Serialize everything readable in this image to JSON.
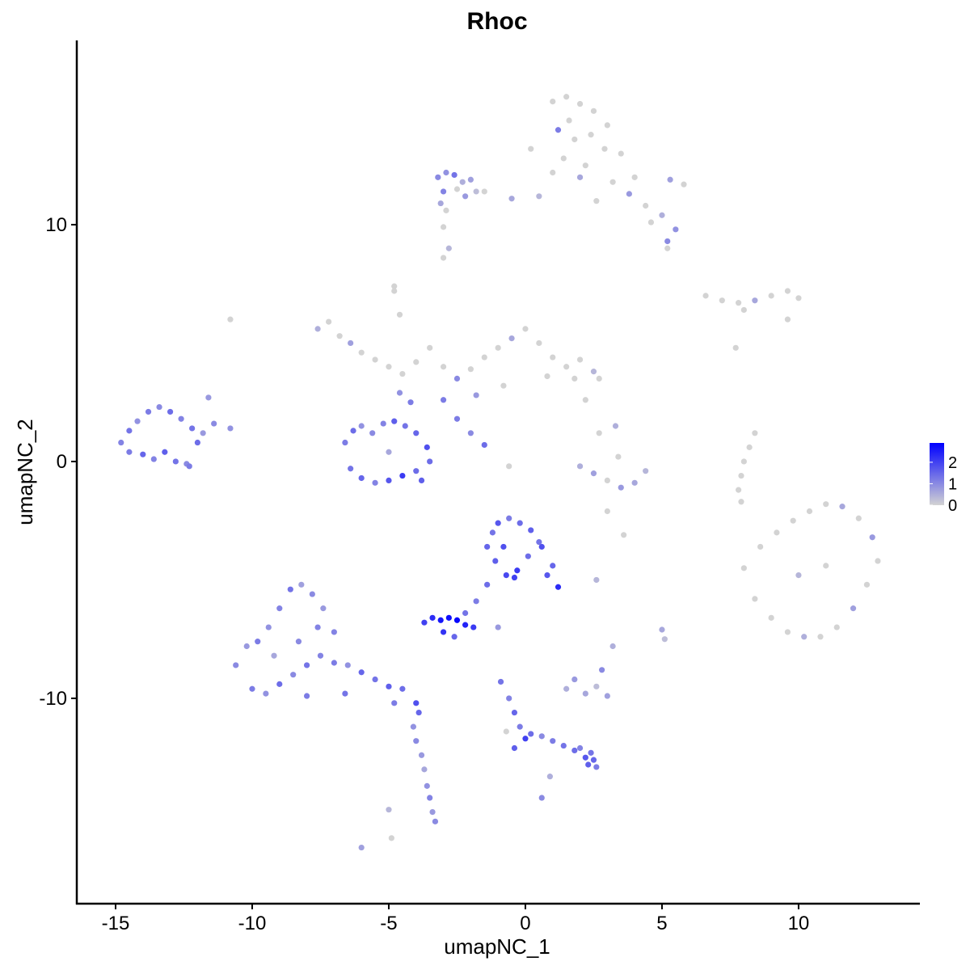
{
  "chart_data": {
    "type": "scatter",
    "title": "Rhoc",
    "x_label": "umapNC_1",
    "y_label": "umapNC_2",
    "xlim": [
      -16.42,
      14.44
    ],
    "ylim": [
      -18.67,
      17.78
    ],
    "xticks": [
      -15,
      -10,
      -5,
      0,
      5,
      10
    ],
    "yticks": [
      -10,
      0,
      10
    ],
    "colors": [
      "#d3d3d3",
      "#0000ff"
    ],
    "clim": [
      0,
      2.9
    ],
    "cticks": [
      0,
      1,
      2
    ],
    "x": [
      1.0,
      1.5,
      2.0,
      2.5,
      3.0,
      1.2,
      1.8,
      2.4,
      2.9,
      1.4,
      1.0,
      2.0,
      3.2,
      3.8,
      4.4,
      5.0,
      5.5,
      5.2,
      4.6,
      2.6,
      5.3,
      5.8,
      4.0,
      3.5,
      0.5,
      -0.5,
      -1.5,
      0.2,
      2.2,
      1.6,
      -3.2,
      -2.9,
      -2.6,
      -2.3,
      -2.0,
      -3.0,
      -2.5,
      -2.2,
      -3.1,
      -1.8,
      -7.6,
      -7.2,
      -6.8,
      -6.4,
      -6.0,
      -5.5,
      -5.0,
      -4.5,
      -4.0,
      -3.5,
      -3.0,
      -2.5,
      -2.0,
      -1.5,
      -1.0,
      -0.5,
      0.0,
      0.5,
      1.0,
      1.5,
      2.0,
      2.5,
      2.7,
      1.8,
      0.8,
      -0.8,
      -1.8,
      -4.6,
      -4.8,
      -3.0,
      -6.6,
      -6.3,
      -6.0,
      -5.6,
      -5.2,
      -4.8,
      -4.4,
      -4.0,
      -3.6,
      -3.5,
      -6.4,
      -6.0,
      -5.5,
      -5.0,
      -4.5,
      -4.0,
      -3.8,
      -5.0,
      -4.2,
      -4.6,
      -2.5,
      -2.0,
      -1.5,
      -10.8,
      -0.6,
      -4.8,
      -3.0,
      -2.8,
      3.0,
      2.2,
      -14.8,
      -14.5,
      -14.2,
      -13.8,
      -13.4,
      -13.0,
      -12.6,
      -12.2,
      -11.8,
      -11.4,
      -14.5,
      -14.0,
      -13.6,
      -13.2,
      -12.8,
      -12.4,
      -12.0,
      -11.6,
      -12.3,
      -10.8,
      8.0,
      8.6,
      9.2,
      9.8,
      10.4,
      11.0,
      11.6,
      12.2,
      12.7,
      12.9,
      8.4,
      9.0,
      9.6,
      10.2,
      10.8,
      11.4,
      12.0,
      12.5,
      10.0,
      11.0,
      -10.6,
      -10.2,
      -9.8,
      -9.4,
      -9.0,
      -8.6,
      -8.2,
      -7.8,
      -7.4,
      -7.0,
      -10.0,
      -9.5,
      -9.0,
      -8.5,
      -8.0,
      -7.5,
      -7.0,
      -6.5,
      -6.0,
      -5.5,
      -5.0,
      -4.5,
      -4.0,
      -3.9,
      -8.0,
      -8.3,
      -9.2,
      -7.6,
      -6.6,
      -4.8,
      -4.1,
      -4.0,
      -3.8,
      -3.7,
      -3.6,
      -3.5,
      -3.4,
      -3.3,
      -6.0,
      -4.9,
      -1.4,
      -1.2,
      -1.0,
      -0.6,
      -0.2,
      0.2,
      0.6,
      1.0,
      1.2,
      0.8,
      -1.1,
      -0.7,
      -0.3,
      0.1,
      0.5,
      -0.8,
      -0.4,
      -1.4,
      -1.8,
      -2.2,
      -3.7,
      -3.4,
      -3.1,
      -2.8,
      -2.5,
      -2.2,
      -1.9,
      -2.6,
      -3.0,
      -1.0,
      -0.9,
      -0.6,
      -0.4,
      -0.2,
      0.0,
      -0.4,
      0.2,
      0.6,
      1.0,
      1.4,
      1.8,
      2.2,
      2.5,
      2.6,
      2.4,
      0.6,
      -0.7,
      0.9,
      2.0,
      2.3,
      2.0,
      2.5,
      3.0,
      3.5,
      4.0,
      4.4,
      3.4,
      2.7,
      3.3,
      3.6,
      6.6,
      7.2,
      7.8,
      8.4,
      9.0,
      9.6,
      10.0,
      8.0,
      9.6,
      7.7,
      1.5,
      1.8,
      2.2,
      2.6,
      3.0,
      2.8,
      3.2,
      5.0,
      5.1,
      2.6,
      8.4,
      8.2,
      8.0,
      7.9,
      7.8,
      7.9,
      -2.9,
      -3.0,
      5.2,
      -5.0
    ],
    "y": [
      15.2,
      15.4,
      15.1,
      14.8,
      14.2,
      14.0,
      13.6,
      13.8,
      13.2,
      12.8,
      12.2,
      12.0,
      11.8,
      11.3,
      10.8,
      10.4,
      9.8,
      9.3,
      10.1,
      11.0,
      11.9,
      11.7,
      12.0,
      13.0,
      11.2,
      11.1,
      11.4,
      13.2,
      12.5,
      14.4,
      12.0,
      12.2,
      12.1,
      11.8,
      11.9,
      11.4,
      11.5,
      11.2,
      10.9,
      11.4,
      5.6,
      5.9,
      5.3,
      5.0,
      4.6,
      4.3,
      4.0,
      3.7,
      4.2,
      4.8,
      4.0,
      3.5,
      3.9,
      4.4,
      4.8,
      5.2,
      5.6,
      5.0,
      4.4,
      4.0,
      4.3,
      3.8,
      3.5,
      3.5,
      3.6,
      3.2,
      2.8,
      6.2,
      7.2,
      2.6,
      0.8,
      1.3,
      1.5,
      1.2,
      1.6,
      1.7,
      1.5,
      1.2,
      0.6,
      0.0,
      -0.3,
      -0.7,
      -0.9,
      -0.8,
      -0.6,
      -0.4,
      -0.8,
      0.4,
      2.5,
      2.9,
      1.8,
      1.2,
      0.7,
      6.0,
      -0.2,
      7.4,
      8.6,
      9.0,
      -2.1,
      2.6,
      0.8,
      1.3,
      1.7,
      2.1,
      2.3,
      2.1,
      1.8,
      1.4,
      1.2,
      1.6,
      0.4,
      0.3,
      0.1,
      0.4,
      0.0,
      -0.1,
      0.8,
      2.7,
      -0.2,
      1.4,
      -4.5,
      -3.6,
      -3.0,
      -2.5,
      -2.1,
      -1.8,
      -1.9,
      -2.4,
      -3.2,
      -4.2,
      -5.8,
      -6.6,
      -7.2,
      -7.4,
      -7.4,
      -7.0,
      -6.2,
      -5.2,
      -4.8,
      -4.4,
      -8.6,
      -7.8,
      -7.6,
      -7.0,
      -6.2,
      -5.4,
      -5.2,
      -5.6,
      -6.2,
      -7.2,
      -9.6,
      -9.8,
      -9.4,
      -9.0,
      -8.6,
      -8.2,
      -8.5,
      -8.6,
      -8.9,
      -9.2,
      -9.5,
      -9.6,
      -10.2,
      -10.6,
      -9.9,
      -7.6,
      -8.2,
      -7.0,
      -9.8,
      -10.2,
      -11.2,
      -11.8,
      -12.4,
      -13.0,
      -13.7,
      -14.2,
      -14.8,
      -15.2,
      -16.3,
      -15.9,
      -3.6,
      -3.0,
      -2.6,
      -2.4,
      -2.6,
      -2.9,
      -3.6,
      -4.4,
      -5.3,
      -4.8,
      -4.2,
      -4.8,
      -4.6,
      -4.0,
      -3.4,
      -3.6,
      -4.9,
      -5.2,
      -5.9,
      -6.4,
      -6.8,
      -6.6,
      -6.7,
      -6.6,
      -6.7,
      -6.9,
      -7.0,
      -7.4,
      -7.2,
      -7.0,
      -9.3,
      -10.0,
      -10.6,
      -11.2,
      -11.7,
      -12.1,
      -11.5,
      -11.6,
      -11.8,
      -12.0,
      -12.2,
      -12.5,
      -12.6,
      -12.9,
      -12.3,
      -14.2,
      -11.4,
      -13.3,
      -12.1,
      -12.8,
      -0.2,
      -0.5,
      -0.8,
      -1.1,
      -0.9,
      -0.4,
      0.2,
      1.2,
      1.5,
      -3.1,
      7.0,
      6.8,
      6.7,
      6.8,
      7.0,
      7.2,
      6.9,
      6.4,
      6.0,
      4.8,
      -9.6,
      -9.2,
      -9.8,
      -9.5,
      -9.9,
      -8.8,
      -7.8,
      -7.1,
      -7.5,
      -5.0,
      1.2,
      0.6,
      0.0,
      -0.6,
      -1.2,
      -1.7,
      10.6,
      9.9,
      9.0,
      -14.7
    ],
    "values": [
      0,
      0,
      0,
      0,
      0,
      1.2,
      0,
      0,
      0,
      0,
      0,
      0.6,
      0,
      0.8,
      0,
      0.5,
      0.9,
      1.0,
      0,
      0,
      0.7,
      0,
      0,
      0,
      0.4,
      0.6,
      0,
      0,
      0,
      0,
      1.0,
      0.9,
      1.3,
      0.5,
      0.7,
      1.1,
      0,
      0.8,
      0.6,
      0.3,
      0.5,
      0,
      0,
      0.7,
      0,
      0,
      0,
      0,
      0,
      0,
      0,
      1.0,
      0,
      0,
      0,
      0.6,
      0,
      0,
      0,
      0,
      0,
      0.4,
      0,
      0,
      0,
      0,
      0.8,
      0,
      0,
      1.2,
      1.2,
      1.4,
      0.9,
      1.0,
      1.1,
      1.6,
      1.3,
      1.5,
      1.8,
      1.4,
      1.3,
      1.5,
      1.1,
      1.7,
      2.1,
      1.4,
      1.6,
      0.6,
      1.2,
      0.9,
      1.2,
      1.0,
      1.4,
      0,
      0,
      0,
      0,
      0.4,
      0,
      0,
      1.1,
      1.3,
      0.9,
      1.2,
      1.0,
      1.4,
      1.1,
      1.3,
      0.8,
      1.0,
      1.2,
      1.5,
      1.1,
      1.6,
      1.3,
      1.0,
      1.4,
      0.8,
      1.2,
      0.9,
      0,
      0,
      0,
      0,
      0,
      0,
      0.6,
      0,
      0.8,
      0,
      0,
      0,
      0,
      0.5,
      0,
      0,
      0.7,
      0,
      0.4,
      0,
      1.0,
      0.8,
      1.2,
      0.9,
      1.1,
      1.3,
      0.7,
      1.0,
      0.8,
      1.1,
      1.2,
      0.9,
      1.4,
      1.0,
      1.3,
      1.1,
      1.2,
      0.9,
      1.5,
      1.3,
      1.6,
      1.4,
      1.8,
      1.5,
      1.2,
      1.0,
      0.6,
      1.1,
      1.3,
      1.2,
      0.9,
      1.0,
      0.8,
      0.6,
      0.9,
      1.1,
      0.8,
      1.0,
      0.7,
      0,
      1.5,
      1.3,
      1.7,
      1.2,
      1.4,
      1.6,
      1.8,
      1.5,
      2.3,
      1.7,
      1.6,
      1.9,
      2.1,
      1.4,
      1.3,
      1.8,
      2.0,
      1.4,
      1.2,
      1.3,
      2.0,
      2.3,
      2.6,
      2.7,
      2.8,
      2.4,
      2.1,
      1.5,
      2.2,
      0.8,
      1.3,
      1.1,
      1.5,
      1.2,
      2.0,
      1.6,
      1.4,
      1.0,
      1.2,
      1.3,
      1.4,
      1.7,
      1.5,
      1.2,
      1.3,
      1.0,
      0,
      0.5,
      1.1,
      1.6,
      0.5,
      0.7,
      0,
      0.8,
      0.6,
      0.4,
      0,
      0,
      0.5,
      0,
      0,
      0,
      0,
      0.6,
      0,
      0,
      0,
      0,
      0,
      0,
      0.5,
      0.8,
      0.6,
      0.3,
      0.7,
      1.0,
      0.5,
      0.6,
      0.3,
      0.4,
      0,
      0,
      0,
      0,
      0,
      0,
      0,
      0,
      0,
      0.4
    ]
  }
}
